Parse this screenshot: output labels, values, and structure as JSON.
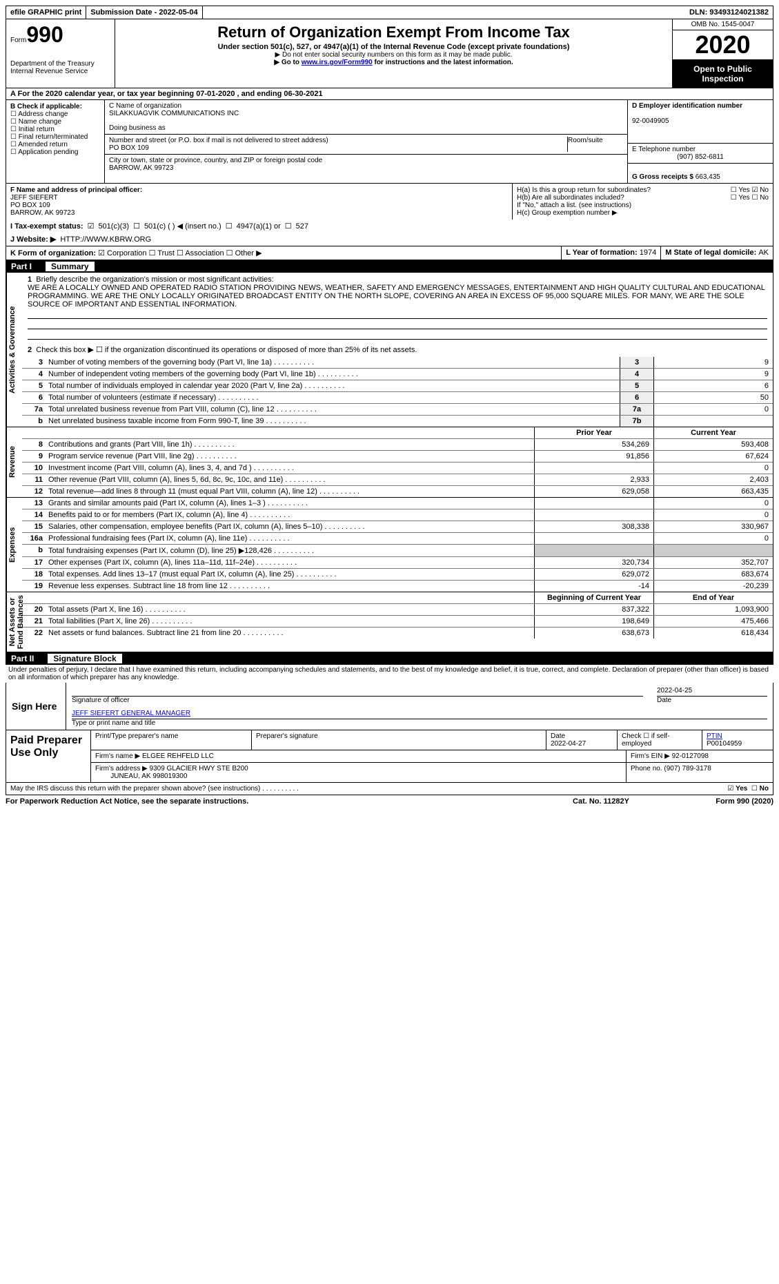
{
  "topbar": {
    "efile": "efile GRAPHIC print",
    "submission_label": "Submission Date - ",
    "submission_date": "2022-05-04",
    "dln_label": "DLN: ",
    "dln": "93493124021382"
  },
  "header": {
    "form_word": "Form",
    "form_num": "990",
    "dept": "Department of the Treasury\nInternal Revenue Service",
    "title": "Return of Organization Exempt From Income Tax",
    "subtitle": "Under section 501(c), 527, or 4947(a)(1) of the Internal Revenue Code (except private foundations)",
    "note1": "▶ Do not enter social security numbers on this form as it may be made public.",
    "note2_pre": "▶ Go to ",
    "note2_link": "www.irs.gov/Form990",
    "note2_post": " for instructions and the latest information.",
    "omb": "OMB No. 1545-0047",
    "year": "2020",
    "open": "Open to Public Inspection"
  },
  "row_a": "A For the 2020 calendar year, or tax year beginning 07-01-2020   , and ending 06-30-2021",
  "col_b": {
    "title": "B Check if applicable:",
    "items": [
      "Address change",
      "Name change",
      "Initial return",
      "Final return/terminated",
      "Amended return",
      "Application pending"
    ]
  },
  "col_c": {
    "name_label": "C Name of organization",
    "name": "SILAKKUAGVIK COMMUNICATIONS INC",
    "dba_label": "Doing business as",
    "street_label": "Number and street (or P.O. box if mail is not delivered to street address)",
    "street": "PO BOX 109",
    "room_label": "Room/suite",
    "city_label": "City or town, state or province, country, and ZIP or foreign postal code",
    "city": "BARROW, AK  99723",
    "f_label": "F Name and address of principal officer:",
    "f_name": "JEFF SIEFERT",
    "f_addr1": "PO BOX 109",
    "f_addr2": "BARROW, AK  99723"
  },
  "col_d": {
    "ein_label": "D Employer identification number",
    "ein": "92-0049905",
    "phone_label": "E Telephone number",
    "phone": "(907) 852-6811",
    "gross_label": "G Gross receipts $ ",
    "gross": "663,435"
  },
  "col_h": {
    "ha": "H(a)  Is this a group return for subordinates?",
    "hb": "H(b)  Are all subordinates included?",
    "hb_note": "If \"No,\" attach a list. (see instructions)",
    "hc": "H(c)  Group exemption number ▶",
    "yes": "Yes",
    "no": "No"
  },
  "row_i": {
    "label": "I   Tax-exempt status:",
    "o1": "501(c)(3)",
    "o2": "501(c) (  ) ◀ (insert no.)",
    "o3": "4947(a)(1) or",
    "o4": "527"
  },
  "row_j": {
    "label": "J   Website: ▶",
    "url": "HTTP://WWW.KBRW.ORG"
  },
  "row_k": {
    "k": "K Form of organization:",
    "k1": "Corporation",
    "k2": "Trust",
    "k3": "Association",
    "k4": "Other ▶",
    "l": "L Year of formation: ",
    "l_val": "1974",
    "m": "M State of legal domicile: ",
    "m_val": "AK"
  },
  "part1": {
    "label": "Part I",
    "title": "Summary"
  },
  "summary": {
    "q1_label": "Briefly describe the organization's mission or most significant activities:",
    "q1_text": "WE ARE A LOCALLY OWNED AND OPERATED RADIO STATION PROVIDING NEWS, WEATHER, SAFETY AND EMERGENCY MESSAGES, ENTERTAINMENT AND HIGH QUALITY CULTURAL AND EDUCATIONAL PROGRAMMING. WE ARE THE ONLY LOCALLY ORIGINATED BROADCAST ENTITY ON THE NORTH SLOPE, COVERING AN AREA IN EXCESS OF 95,000 SQUARE MILES. FOR MANY, WE ARE THE SOLE SOURCE OF IMPORTANT AND ESSENTIAL INFORMATION.",
    "q2": "Check this box ▶ ☐  if the organization discontinued its operations or disposed of more than 25% of its net assets.",
    "lines_single": [
      {
        "n": "3",
        "label": "Number of voting members of the governing body (Part VI, line 1a)",
        "box": "3",
        "val": "9"
      },
      {
        "n": "4",
        "label": "Number of independent voting members of the governing body (Part VI, line 1b)",
        "box": "4",
        "val": "9"
      },
      {
        "n": "5",
        "label": "Total number of individuals employed in calendar year 2020 (Part V, line 2a)",
        "box": "5",
        "val": "6"
      },
      {
        "n": "6",
        "label": "Total number of volunteers (estimate if necessary)",
        "box": "6",
        "val": "50"
      },
      {
        "n": "7a",
        "label": "Total unrelated business revenue from Part VIII, column (C), line 12",
        "box": "7a",
        "val": "0"
      },
      {
        "n": "b",
        "label": "Net unrelated business taxable income from Form 990-T, line 39",
        "box": "7b",
        "val": ""
      }
    ],
    "col_hdr1": "Prior Year",
    "col_hdr2": "Current Year",
    "revenue": [
      {
        "n": "8",
        "label": "Contributions and grants (Part VIII, line 1h)",
        "v1": "534,269",
        "v2": "593,408"
      },
      {
        "n": "9",
        "label": "Program service revenue (Part VIII, line 2g)",
        "v1": "91,856",
        "v2": "67,624"
      },
      {
        "n": "10",
        "label": "Investment income (Part VIII, column (A), lines 3, 4, and 7d )",
        "v1": "",
        "v2": "0"
      },
      {
        "n": "11",
        "label": "Other revenue (Part VIII, column (A), lines 5, 6d, 8c, 9c, 10c, and 11e)",
        "v1": "2,933",
        "v2": "2,403"
      },
      {
        "n": "12",
        "label": "Total revenue—add lines 8 through 11 (must equal Part VIII, column (A), line 12)",
        "v1": "629,058",
        "v2": "663,435"
      }
    ],
    "expenses": [
      {
        "n": "13",
        "label": "Grants and similar amounts paid (Part IX, column (A), lines 1–3 )",
        "v1": "",
        "v2": "0"
      },
      {
        "n": "14",
        "label": "Benefits paid to or for members (Part IX, column (A), line 4)",
        "v1": "",
        "v2": "0"
      },
      {
        "n": "15",
        "label": "Salaries, other compensation, employee benefits (Part IX, column (A), lines 5–10)",
        "v1": "308,338",
        "v2": "330,967"
      },
      {
        "n": "16a",
        "label": "Professional fundraising fees (Part IX, column (A), line 11e)",
        "v1": "",
        "v2": "0"
      },
      {
        "n": "b",
        "label": "Total fundraising expenses (Part IX, column (D), line 25) ▶128,426",
        "v1": "",
        "v2": "",
        "shade": true
      },
      {
        "n": "17",
        "label": "Other expenses (Part IX, column (A), lines 11a–11d, 11f–24e)",
        "v1": "320,734",
        "v2": "352,707"
      },
      {
        "n": "18",
        "label": "Total expenses. Add lines 13–17 (must equal Part IX, column (A), line 25)",
        "v1": "629,072",
        "v2": "683,674"
      },
      {
        "n": "19",
        "label": "Revenue less expenses. Subtract line 18 from line 12",
        "v1": "-14",
        "v2": "-20,239"
      }
    ],
    "na_hdr1": "Beginning of Current Year",
    "na_hdr2": "End of Year",
    "netassets": [
      {
        "n": "20",
        "label": "Total assets (Part X, line 16)",
        "v1": "837,322",
        "v2": "1,093,900"
      },
      {
        "n": "21",
        "label": "Total liabilities (Part X, line 26)",
        "v1": "198,649",
        "v2": "475,466"
      },
      {
        "n": "22",
        "label": "Net assets or fund balances. Subtract line 21 from line 20",
        "v1": "638,673",
        "v2": "618,434"
      }
    ],
    "tabs": {
      "ag": "Activities & Governance",
      "rev": "Revenue",
      "exp": "Expenses",
      "na": "Net Assets or\nFund Balances"
    }
  },
  "part2": {
    "label": "Part II",
    "title": "Signature Block"
  },
  "perjury": "Under penalties of perjury, I declare that I have examined this return, including accompanying schedules and statements, and to the best of my knowledge and belief, it is true, correct, and complete. Declaration of preparer (other than officer) is based on all information of which preparer has any knowledge.",
  "sign": {
    "here": "Sign Here",
    "sig_label": "Signature of officer",
    "date": "2022-04-25",
    "date_label": "Date",
    "name": "JEFF SIEFERT GENERAL MANAGER",
    "name_label": "Type or print name and title"
  },
  "preparer": {
    "title": "Paid Preparer Use Only",
    "h1": "Print/Type preparer's name",
    "h2": "Preparer's signature",
    "h3": "Date",
    "h3v": "2022-04-27",
    "h4": "Check ☐ if self-employed",
    "h5": "PTIN",
    "h5v": "P00104959",
    "firm_label": "Firm's name   ▶",
    "firm": "ELGEE REHFELD LLC",
    "ein_label": "Firm's EIN ▶",
    "ein": "92-0127098",
    "addr_label": "Firm's address ▶",
    "addr1": "9309 GLACIER HWY STE B200",
    "addr2": "JUNEAU, AK  998019300",
    "phone_label": "Phone no.",
    "phone": "(907) 789-3178"
  },
  "discuss": {
    "q": "May the IRS discuss this return with the preparer shown above? (see instructions)",
    "yes": "Yes",
    "no": "No"
  },
  "footer": {
    "left": "For Paperwork Reduction Act Notice, see the separate instructions.",
    "mid": "Cat. No. 11282Y",
    "right": "Form 990 (2020)"
  }
}
